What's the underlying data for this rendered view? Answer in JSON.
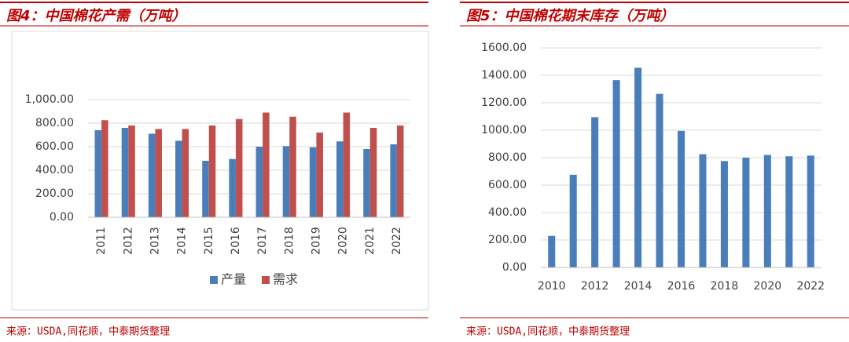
{
  "chart_data": [
    {
      "type": "bar",
      "title": "图4：中国棉花产需（万吨）",
      "source": "来源：USDA,同花顺，中泰期货整理",
      "categories": [
        "2011",
        "2012",
        "2013",
        "2014",
        "2015",
        "2016",
        "2017",
        "2018",
        "2019",
        "2020",
        "2021",
        "2022"
      ],
      "series": [
        {
          "name": "产量",
          "color": "#4a7ebb",
          "values": [
            740,
            760,
            710,
            650,
            480,
            495,
            600,
            605,
            595,
            645,
            580,
            620
          ]
        },
        {
          "name": "需求",
          "color": "#c0504d",
          "values": [
            825,
            780,
            750,
            750,
            780,
            835,
            890,
            855,
            720,
            890,
            760,
            780
          ]
        }
      ],
      "ylim": [
        0,
        1000
      ],
      "yticks": [
        {
          "value": 0,
          "label": "0.00"
        },
        {
          "value": 200,
          "label": "200.00"
        },
        {
          "value": 400,
          "label": "400.00"
        },
        {
          "value": 600,
          "label": "600.00"
        },
        {
          "value": 800,
          "label": "800.00"
        },
        {
          "value": 1000,
          "label": "1,000.00"
        }
      ],
      "grid": true,
      "legend": "bottom"
    },
    {
      "type": "bar",
      "title": "图5：中国棉花期末库存（万吨）",
      "source": "来源：USDA,同花顺，中泰期货整理",
      "categories": [
        "2010",
        null,
        "2012",
        null,
        "2014",
        null,
        "2016",
        null,
        "2018",
        null,
        "2020",
        null,
        "2022"
      ],
      "values": [
        230,
        675,
        1095,
        1365,
        1455,
        1265,
        995,
        825,
        775,
        800,
        820,
        810,
        815
      ],
      "color": "#4a7ebb",
      "ylim": [
        0,
        1600
      ],
      "yticks": [
        {
          "value": 0,
          "label": "0.00"
        },
        {
          "value": 200,
          "label": "200.00"
        },
        {
          "value": 400,
          "label": "400.00"
        },
        {
          "value": 600,
          "label": "600.00"
        },
        {
          "value": 800,
          "label": "800.00"
        },
        {
          "value": 1000,
          "label": "1000.00"
        },
        {
          "value": 1200,
          "label": "1200.00"
        },
        {
          "value": 1400,
          "label": "1400.00"
        },
        {
          "value": 1600,
          "label": "1600.00"
        }
      ],
      "grid": true
    }
  ]
}
